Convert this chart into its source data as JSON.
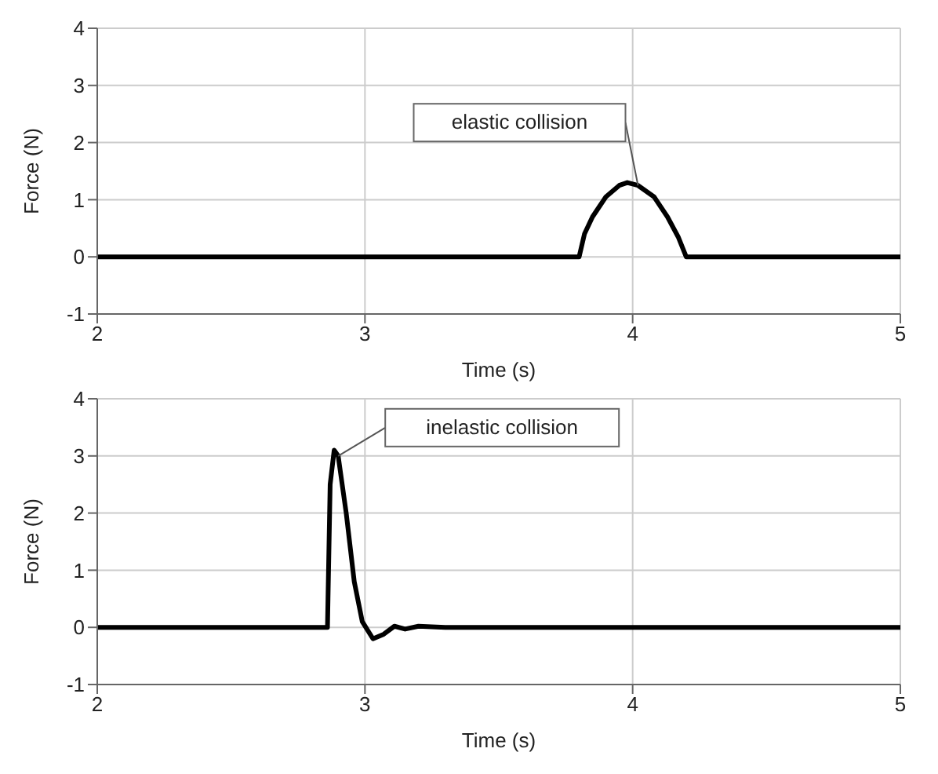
{
  "chart_data": [
    {
      "type": "line",
      "xlabel": "Time (s)",
      "ylabel": "Force (N)",
      "xlim": [
        2,
        5
      ],
      "xticks": [
        2,
        3,
        4,
        5
      ],
      "ylim": [
        -1,
        4
      ],
      "yticks": [
        -1,
        0,
        1,
        2,
        3,
        4
      ],
      "grid": true,
      "legend": false,
      "marker": "none",
      "line_style": "solid",
      "annotations": [
        "elastic collision"
      ],
      "x": [
        2,
        2.5,
        3,
        3.5,
        3.8,
        3.82,
        3.85,
        3.9,
        3.95,
        3.98,
        4.02,
        4.08,
        4.13,
        4.17,
        4.2,
        4.5,
        5
      ],
      "series": [
        {
          "color": "#000000",
          "values": [
            0,
            0,
            0,
            0,
            0,
            0.4,
            0.7,
            1.05,
            1.25,
            1.3,
            1.25,
            1.05,
            0.7,
            0.35,
            0,
            0,
            0
          ]
        }
      ]
    },
    {
      "type": "line",
      "xlabel": "Time (s)",
      "ylabel": "Force (N)",
      "xlim": [
        2,
        5
      ],
      "xticks": [
        2,
        3,
        4,
        5
      ],
      "ylim": [
        -1,
        4
      ],
      "yticks": [
        -1,
        0,
        1,
        2,
        3,
        4
      ],
      "grid": true,
      "legend": false,
      "marker": "none",
      "line_style": "solid",
      "annotations": [
        "inelastic collision"
      ],
      "x": [
        2,
        2.5,
        2.86,
        2.87,
        2.885,
        2.9,
        2.93,
        2.96,
        2.99,
        3.03,
        3.07,
        3.11,
        3.15,
        3.2,
        3.3,
        4,
        5
      ],
      "series": [
        {
          "color": "#000000",
          "values": [
            0,
            0,
            0,
            2.5,
            3.1,
            3.0,
            2.0,
            0.8,
            0.1,
            -0.2,
            -0.12,
            0.02,
            -0.03,
            0.02,
            0,
            0,
            0
          ]
        }
      ]
    }
  ]
}
